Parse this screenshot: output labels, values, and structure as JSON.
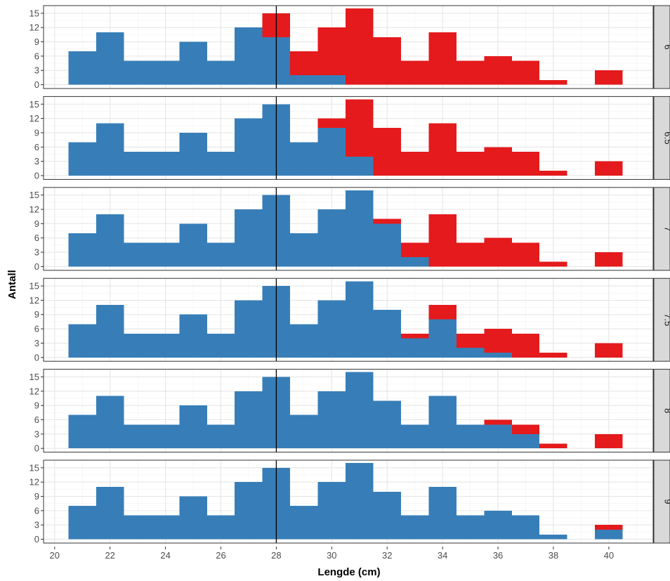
{
  "chart_data": {
    "type": "bar",
    "xlabel": "Lengde (cm)",
    "ylabel": "Antall",
    "x_ticks": [
      20,
      22,
      24,
      26,
      28,
      30,
      32,
      34,
      36,
      38,
      40
    ],
    "y_ticks": [
      0,
      3,
      6,
      9,
      12,
      15
    ],
    "xlim": [
      19.6,
      41.6
    ],
    "ylim": [
      -0.8,
      16.6
    ],
    "vline_x": 28,
    "bins": [
      21,
      22,
      23,
      24,
      25,
      26,
      27,
      28,
      29,
      30,
      31,
      32,
      33,
      34,
      35,
      36,
      37,
      38,
      39,
      40
    ],
    "colors": {
      "blue": "#377EB8",
      "red": "#E41A1C"
    },
    "grid": true,
    "facets": [
      {
        "label": "6",
        "blue": [
          7,
          11,
          5,
          5,
          9,
          5,
          12,
          10,
          2,
          2,
          0,
          0,
          0,
          0,
          0,
          0,
          0,
          0,
          0,
          0
        ],
        "red": [
          0,
          0,
          0,
          0,
          0,
          0,
          0,
          5,
          5,
          10,
          16,
          10,
          5,
          11,
          5,
          6,
          5,
          1,
          0,
          3
        ]
      },
      {
        "label": "6.5",
        "blue": [
          7,
          11,
          5,
          5,
          9,
          5,
          12,
          15,
          7,
          10,
          4,
          0,
          0,
          0,
          0,
          0,
          0,
          0,
          0,
          0
        ],
        "red": [
          0,
          0,
          0,
          0,
          0,
          0,
          0,
          0,
          0,
          2,
          12,
          10,
          5,
          11,
          5,
          6,
          5,
          1,
          0,
          3
        ]
      },
      {
        "label": "7",
        "blue": [
          7,
          11,
          5,
          5,
          9,
          5,
          12,
          15,
          7,
          12,
          16,
          9,
          2,
          0,
          0,
          0,
          0,
          0,
          0,
          0
        ],
        "red": [
          0,
          0,
          0,
          0,
          0,
          0,
          0,
          0,
          0,
          0,
          0,
          1,
          3,
          11,
          5,
          6,
          5,
          1,
          0,
          3
        ]
      },
      {
        "label": "7.5",
        "blue": [
          7,
          11,
          5,
          5,
          9,
          5,
          12,
          15,
          7,
          12,
          16,
          10,
          4,
          8,
          2,
          1,
          0,
          0,
          0,
          0
        ],
        "red": [
          0,
          0,
          0,
          0,
          0,
          0,
          0,
          0,
          0,
          0,
          0,
          0,
          1,
          3,
          3,
          5,
          5,
          1,
          0,
          3
        ]
      },
      {
        "label": "8",
        "blue": [
          7,
          11,
          5,
          5,
          9,
          5,
          12,
          15,
          7,
          12,
          16,
          10,
          5,
          11,
          5,
          5,
          3,
          0,
          0,
          0
        ],
        "red": [
          0,
          0,
          0,
          0,
          0,
          0,
          0,
          0,
          0,
          0,
          0,
          0,
          0,
          0,
          0,
          1,
          2,
          1,
          0,
          3
        ]
      },
      {
        "label": "9",
        "blue": [
          7,
          11,
          5,
          5,
          9,
          5,
          12,
          15,
          7,
          12,
          16,
          10,
          5,
          11,
          5,
          6,
          5,
          1,
          0,
          2
        ],
        "red": [
          0,
          0,
          0,
          0,
          0,
          0,
          0,
          0,
          0,
          0,
          0,
          0,
          0,
          0,
          0,
          0,
          0,
          0,
          0,
          1
        ]
      }
    ]
  }
}
